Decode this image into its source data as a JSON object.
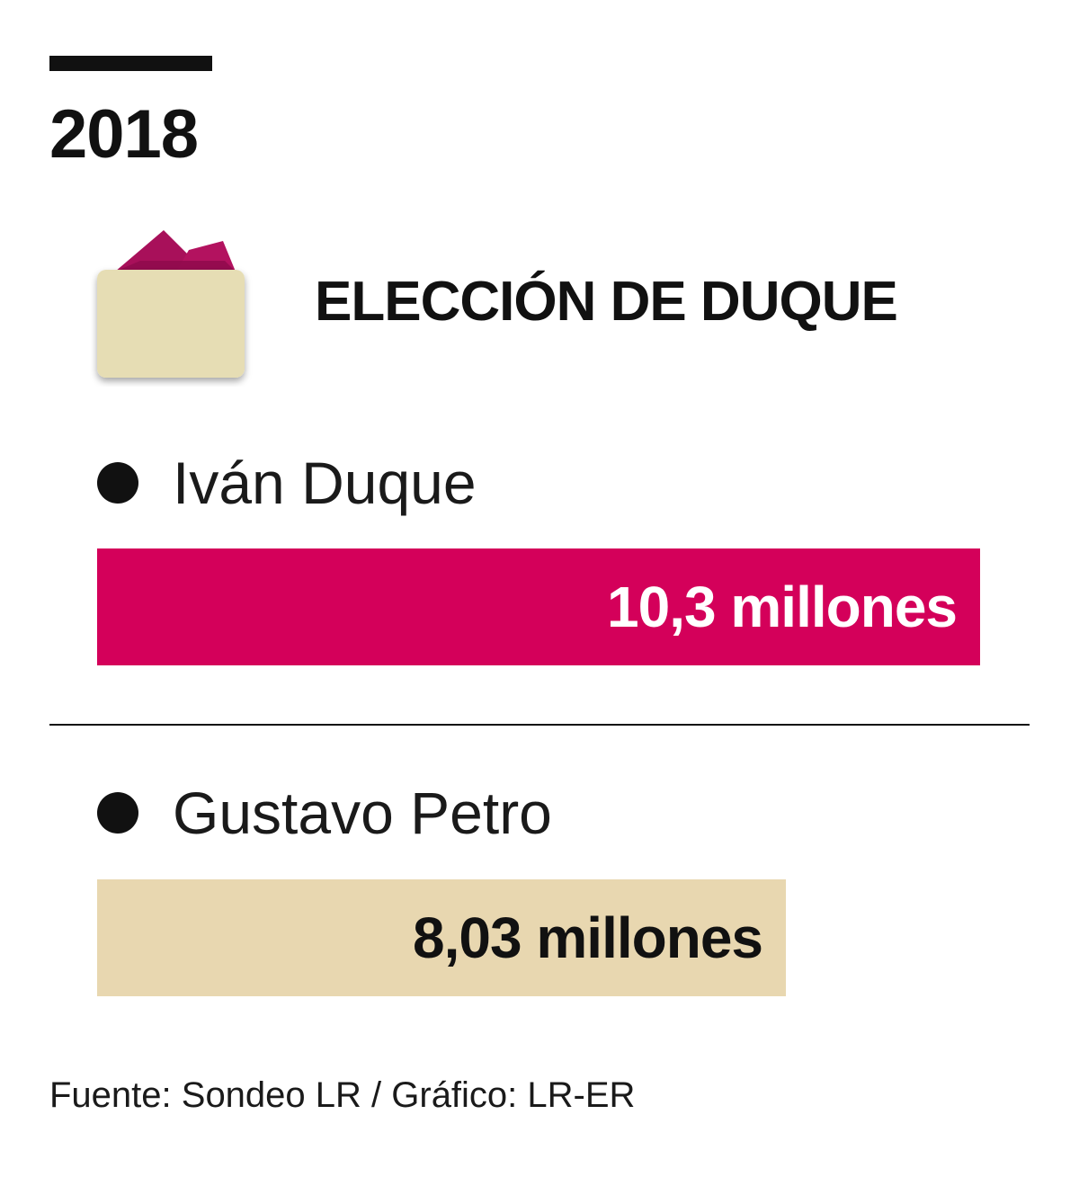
{
  "year": "2018",
  "icon": "ballot-box-icon",
  "colors": {
    "duque": "#d4005a",
    "petro": "#e8d7b0",
    "ink": "#111111",
    "ballot_paper": "#a8105a",
    "ballot_box": "#e6ddb4"
  },
  "chart_data": {
    "type": "bar",
    "title": "ELECCIÓN DE DUQUE",
    "categories": [
      "Iván Duque",
      "Gustavo Petro"
    ],
    "values": [
      10.3,
      8.03
    ],
    "unit": "millones",
    "data_labels": [
      "10,3 millones",
      "8,03 millones"
    ],
    "bar_colors": [
      "#d4005a",
      "#e8d7b0"
    ],
    "label_colors": [
      "#ffffff",
      "#111111"
    ],
    "orientation": "horizontal",
    "xlim": [
      0,
      10.3
    ]
  },
  "source": "Fuente: Sondeo LR / Gráfico: LR-ER"
}
